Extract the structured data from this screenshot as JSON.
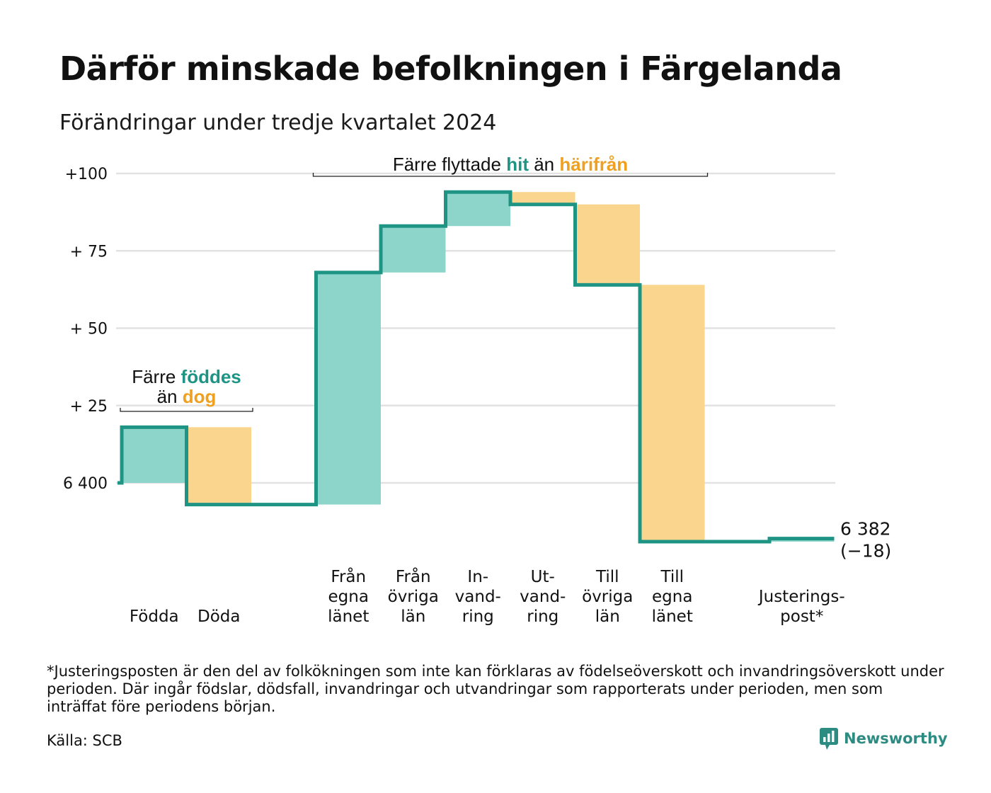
{
  "title": "Därför minskade befolkningen i Färgelanda",
  "subtitle": "Förändringar under tredje kvartalet 2024",
  "footnote": "*Justeringsposten är den del av folkökningen som inte kan förklaras av födelseöverskott och invandringsöverskott under perioden. Där ingår födslar, dödsfall, invandringar och utvandringar som rapporterats under perioden, men som inträffat före periodens början.",
  "source": "Källa: SCB",
  "brand": {
    "name": "Newsworthy",
    "logo_icon": "bar-chart-bubble-icon"
  },
  "colors": {
    "positive": "#8dd4ca",
    "negative": "#fad58e",
    "line": "#1e9484",
    "gridline": "#e2e2e2",
    "accent_positive": "#1e9484",
    "accent_negative": "#f0a020"
  },
  "chart_data": {
    "type": "waterfall",
    "baseline": 6400,
    "end_value": 6382,
    "ylim": [
      -25,
      100
    ],
    "yticks": [
      {
        "value": 100,
        "label": "+100"
      },
      {
        "value": 75,
        "label": "+ 75"
      },
      {
        "value": 50,
        "label": "+ 50"
      },
      {
        "value": 25,
        "label": "+ 25"
      },
      {
        "value": 0,
        "label": "6 400"
      }
    ],
    "steps": [
      {
        "lines": [
          "",
          "",
          "Födda"
        ],
        "change": 18,
        "kind": "positive"
      },
      {
        "lines": [
          "",
          "",
          "Döda"
        ],
        "change": -25,
        "kind": "negative"
      },
      {
        "lines": [
          "",
          "",
          ""
        ],
        "change": 0,
        "kind": "gap"
      },
      {
        "lines": [
          "Från",
          "egna",
          "länet"
        ],
        "change": 75,
        "kind": "positive"
      },
      {
        "lines": [
          "Från",
          "övriga",
          "län"
        ],
        "change": 15,
        "kind": "positive"
      },
      {
        "lines": [
          "In-",
          "vand-",
          "ring"
        ],
        "change": 11,
        "kind": "positive"
      },
      {
        "lines": [
          "Ut-",
          "vand-",
          "ring"
        ],
        "change": -4,
        "kind": "negative"
      },
      {
        "lines": [
          "Till",
          "övriga",
          "län"
        ],
        "change": -26,
        "kind": "negative"
      },
      {
        "lines": [
          "Till",
          "egna",
          "länet"
        ],
        "change": -83,
        "kind": "negative"
      },
      {
        "lines": [
          "",
          "",
          ""
        ],
        "change": 0,
        "kind": "gap"
      },
      {
        "lines": [
          "",
          "Justerings-",
          "post*"
        ],
        "change": 1,
        "kind": "positive"
      }
    ],
    "end_labels": [
      "6 382",
      "(−18)"
    ],
    "annotations": [
      {
        "text_plain": "Färre flyttade",
        "text_pos": "hit",
        "text_mid": "än",
        "text_neg": "härifrån",
        "from_step": 3,
        "to_step": 8,
        "y": 100
      },
      {
        "text_plain": "Färre",
        "text_pos": "föddes",
        "text_mid": "än",
        "text_neg": "dog",
        "from_step": 0,
        "to_step": 1,
        "y": 23
      }
    ]
  }
}
